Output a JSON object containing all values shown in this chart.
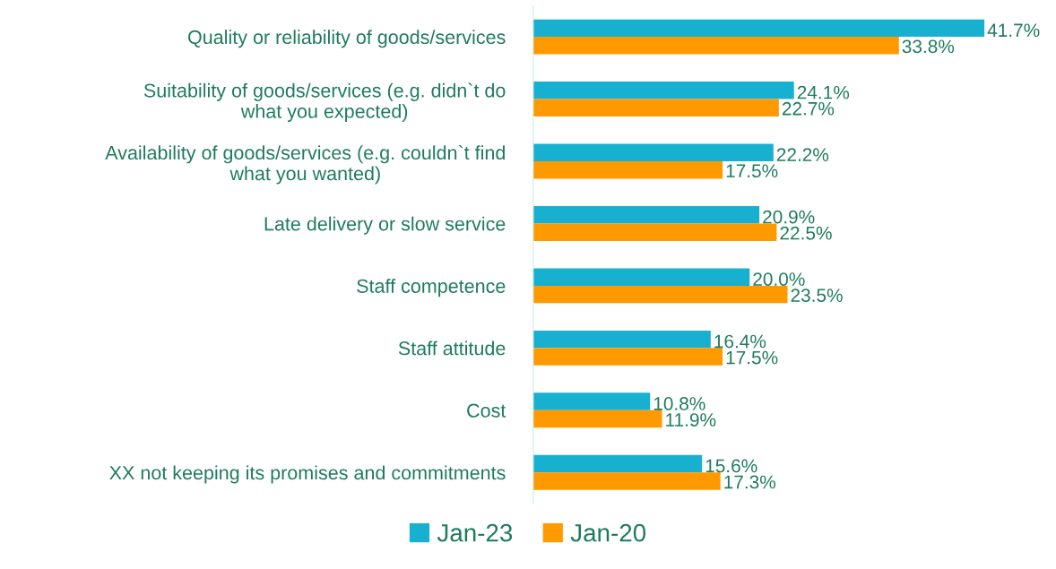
{
  "chart_data": {
    "type": "bar",
    "orientation": "horizontal",
    "categories": [
      "Quality or reliability of goods/services",
      "Suitability of goods/services (e.g. didn`t do\nwhat you expected)",
      "Availability of goods/services (e.g. couldn`t find\nwhat you wanted)",
      "Late delivery or slow service",
      "Staff competence",
      "Staff attitude",
      "Cost",
      "XX not keeping its promises and commitments"
    ],
    "series": [
      {
        "name": "Jan-23",
        "color": "#17b0d0",
        "values": [
          41.7,
          24.1,
          22.2,
          20.9,
          20.0,
          16.4,
          10.8,
          15.6
        ],
        "value_labels": [
          "41.7%",
          "24.1%",
          "22.2%",
          "20.9%",
          "20.0%",
          "16.4%",
          "10.8%",
          "15.6%"
        ]
      },
      {
        "name": "Jan-20",
        "color": "#ff9900",
        "values": [
          33.8,
          22.7,
          17.5,
          22.5,
          23.5,
          17.5,
          11.9,
          17.3
        ],
        "value_labels": [
          "33.8%",
          "22.7%",
          "17.5%",
          "22.5%",
          "23.5%",
          "17.5%",
          "11.9%",
          "17.3%"
        ]
      }
    ],
    "tick_labels": "y",
    "grid": false,
    "legend": "bottom"
  }
}
